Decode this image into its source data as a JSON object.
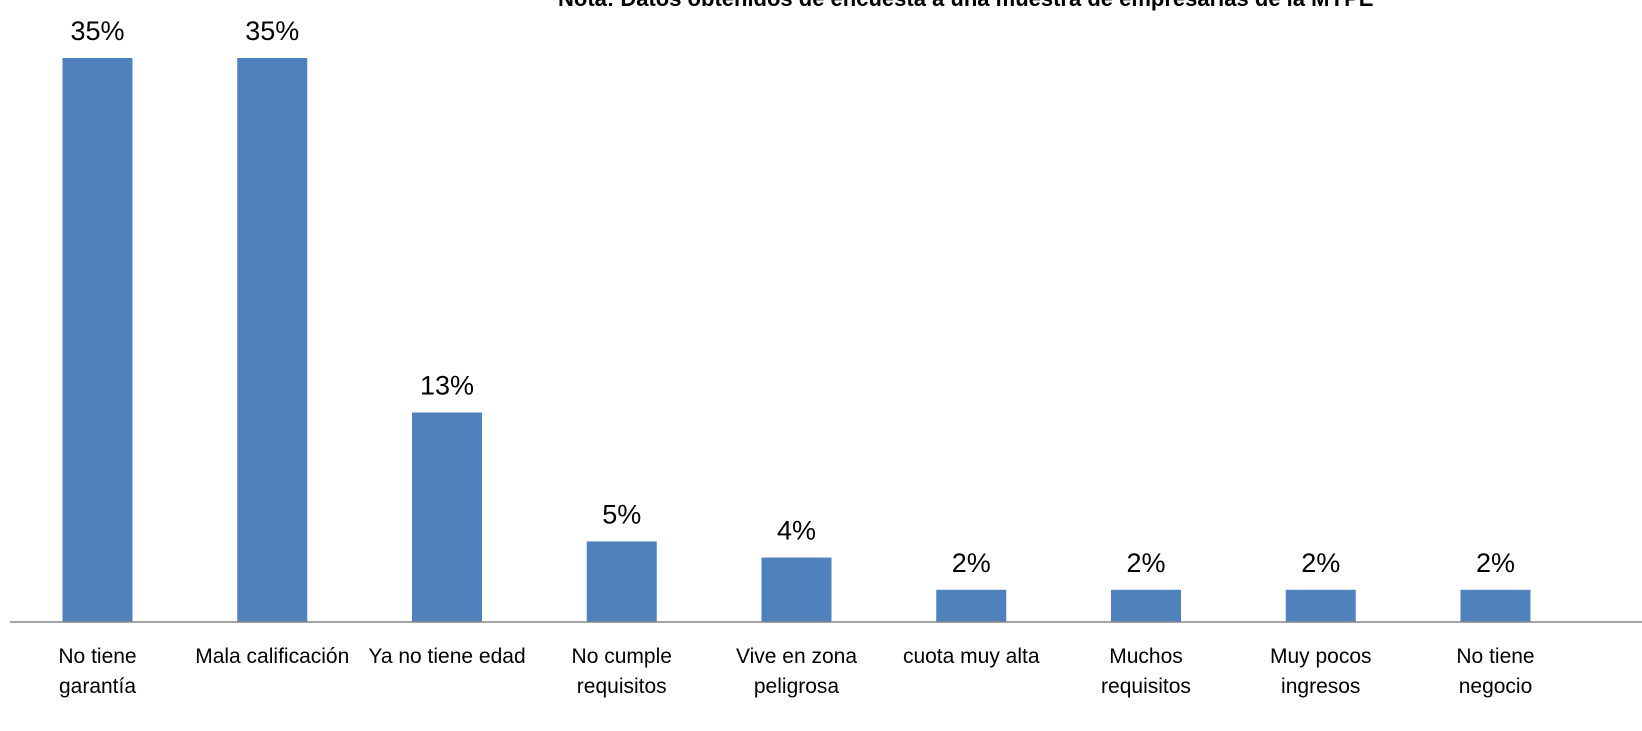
{
  "note": "Nota: Datos obtenidos de encuesta a una muestra de empresarias de la MYPE",
  "chart_data": {
    "type": "bar",
    "categories": [
      [
        "No tiene",
        "garantía"
      ],
      [
        "Mala calificación"
      ],
      [
        "Ya no tiene edad"
      ],
      [
        "No cumple",
        "requisitos"
      ],
      [
        "Vive en zona",
        "peligrosa"
      ],
      [
        "cuota muy alta"
      ],
      [
        "Muchos",
        "requisitos"
      ],
      [
        "Muy pocos",
        "ingresos"
      ],
      [
        "No tiene",
        "negocio"
      ]
    ],
    "values": [
      35,
      35,
      13,
      5,
      4,
      2,
      2,
      2,
      2
    ],
    "data_labels": [
      "35%",
      "35%",
      "13%",
      "5%",
      "4%",
      "2%",
      "2%",
      "2%",
      "2%"
    ],
    "unit": "%",
    "ylim": [
      0,
      35
    ],
    "bar_color": "#4F81BD",
    "axis_color": "#868686",
    "grid": false,
    "legend": "none"
  }
}
